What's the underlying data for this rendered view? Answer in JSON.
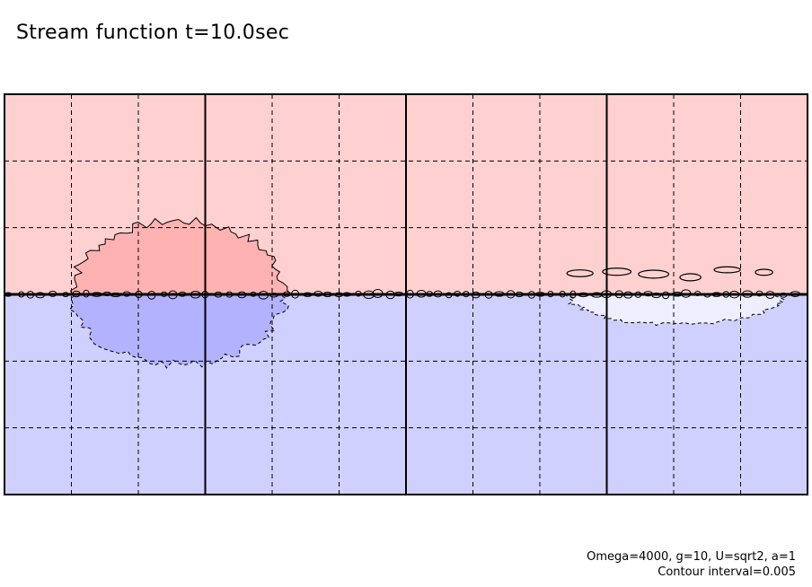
{
  "chart_data": {
    "type": "contour",
    "title": "Stream function t=10.0sec",
    "parameters": "Omega=4000, g=10, U=sqrt2, a=1",
    "contour_interval": "Contour interval=0.005",
    "xlim": [
      0,
      12
    ],
    "ylim": [
      -3,
      3
    ],
    "x_solid_lines": [
      3,
      6,
      9
    ],
    "x_dashed_lines": [
      1,
      2,
      4,
      5,
      7,
      8,
      10,
      11
    ],
    "y_dashed_lines": [
      -2,
      -1,
      1,
      2
    ],
    "interface_y": 0,
    "upper_fill": "#ffd0d0",
    "lower_fill": "#d0d0ff",
    "upper_anomaly_fill": "#ffb2b2",
    "lower_anomaly_fill": "#b2b2ff",
    "weak_anomaly_fill": "#eeeeff",
    "features": [
      {
        "name": "vortex-pair-left",
        "cx": 2.6,
        "upper_height": 1.1,
        "lower_depth": 1.05,
        "half_width": 1.6
      },
      {
        "name": "disturbance-right",
        "cx": 10.0,
        "upper_height": 0.35,
        "lower_depth": 0.45,
        "half_width": 1.6
      }
    ]
  }
}
